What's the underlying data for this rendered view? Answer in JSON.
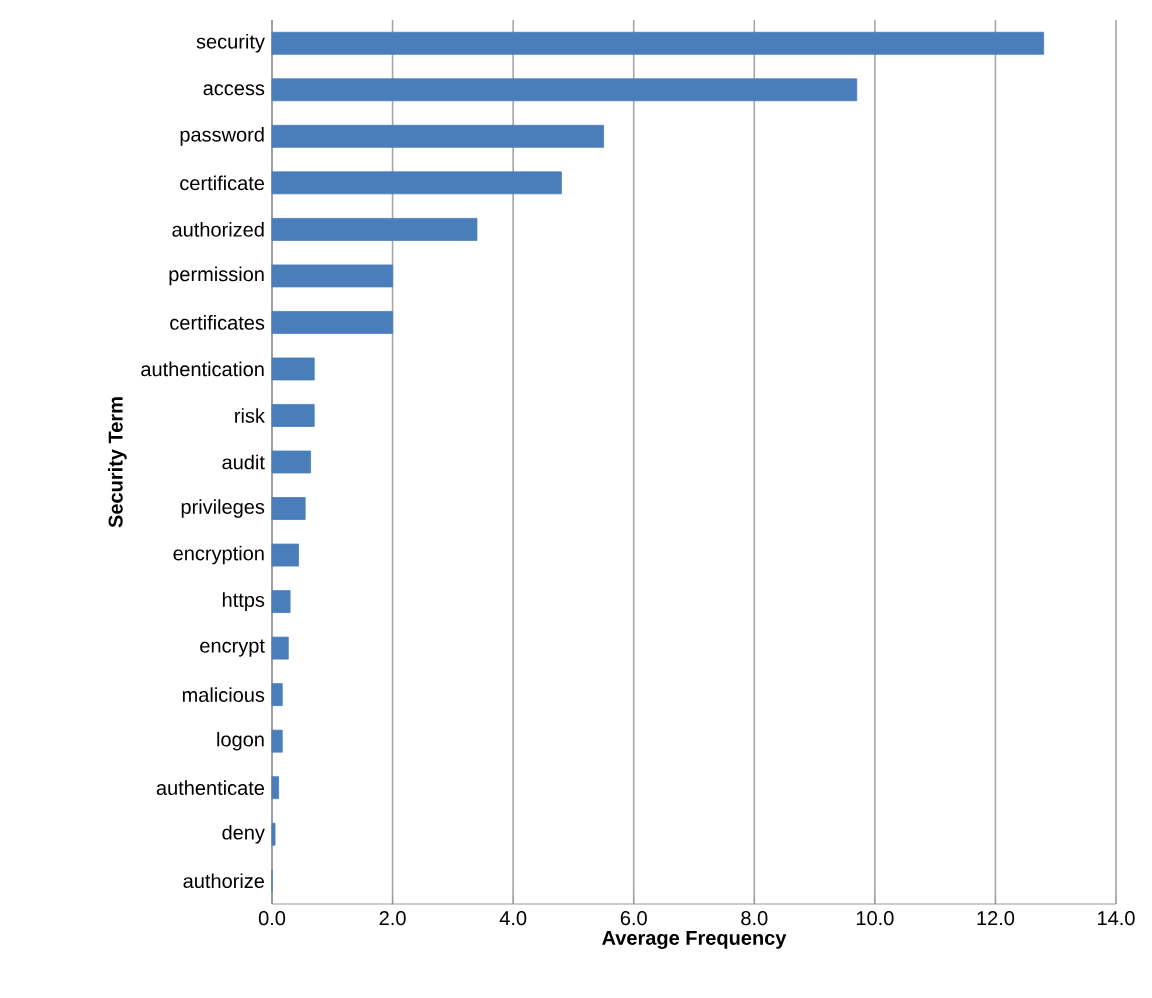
{
  "chart_data": {
    "type": "bar",
    "orientation": "horizontal",
    "xlabel": "Average Frequency",
    "ylabel": "Security Term",
    "categories": [
      "security",
      "access",
      "password",
      "certificate",
      "authorized",
      "permission",
      "certificates",
      "authentication",
      "risk",
      "audit",
      "privileges",
      "encryption",
      "https",
      "encrypt",
      "malicious",
      "logon",
      "authenticate",
      "deny",
      "authorize"
    ],
    "values": [
      12.8,
      9.7,
      5.5,
      4.8,
      3.4,
      2.0,
      2.0,
      0.7,
      0.7,
      0.64,
      0.55,
      0.44,
      0.3,
      0.27,
      0.17,
      0.17,
      0.11,
      0.05,
      0
    ],
    "color": "#4a7ebb",
    "xlim": [
      0,
      14
    ],
    "xticks": [
      {
        "value": 0,
        "label": "0.0"
      },
      {
        "value": 2,
        "label": "2.0"
      },
      {
        "value": 4,
        "label": "4.0"
      },
      {
        "value": 6,
        "label": "6.0"
      },
      {
        "value": 8,
        "label": "8.0"
      },
      {
        "value": 10,
        "label": "10.0"
      },
      {
        "value": 12,
        "label": "12.0"
      },
      {
        "value": 14,
        "label": "14.0"
      }
    ],
    "grid": "x"
  }
}
